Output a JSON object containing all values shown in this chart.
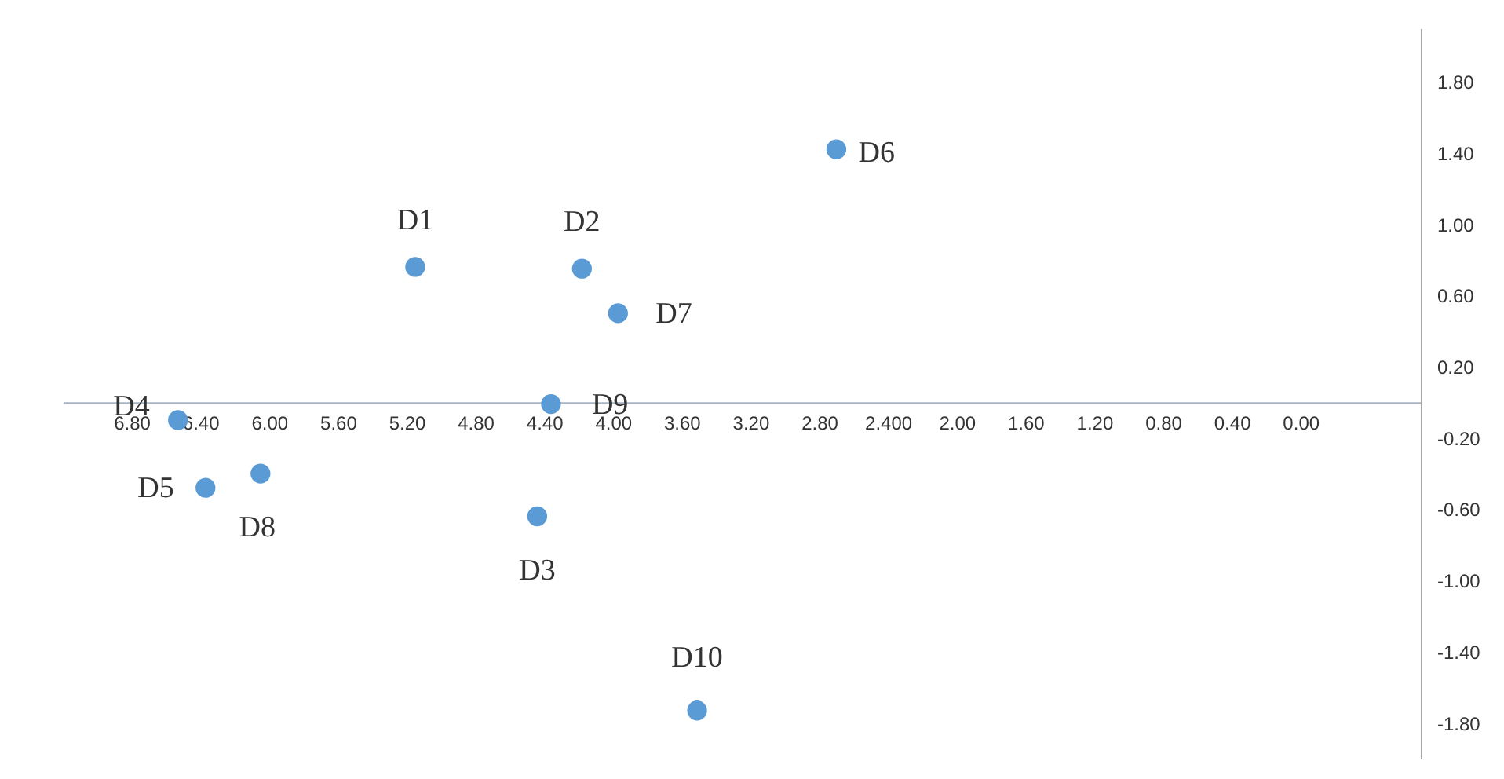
{
  "chart_data": {
    "type": "scatter",
    "x": [
      5.15,
      4.18,
      4.44,
      6.53,
      6.37,
      2.7,
      3.97,
      6.05,
      4.36,
      3.51
    ],
    "values": [
      0.76,
      0.75,
      -0.64,
      -0.1,
      -0.48,
      1.42,
      0.5,
      -0.4,
      -0.01,
      -1.73
    ],
    "value_labels": [
      "D1",
      "D2",
      "D3",
      "D4",
      "D5",
      "D6",
      "D7",
      "D8",
      "D9",
      "D10"
    ],
    "color": "#5b9bd5",
    "marker": "circle",
    "grid": false,
    "xlim": [
      7.2,
      -0.7
    ],
    "ylim": [
      -2.0,
      2.1
    ],
    "xticks": [
      {
        "value": 6.8,
        "label": "6.80"
      },
      {
        "value": 6.4,
        "label": "6.40"
      },
      {
        "value": 6.0,
        "label": "6.00"
      },
      {
        "value": 5.6,
        "label": "5.60"
      },
      {
        "value": 5.2,
        "label": "5.20"
      },
      {
        "value": 4.8,
        "label": "4.80"
      },
      {
        "value": 4.4,
        "label": "4.40"
      },
      {
        "value": 4.0,
        "label": "4.00"
      },
      {
        "value": 3.6,
        "label": "3.60"
      },
      {
        "value": 3.2,
        "label": "3.20"
      },
      {
        "value": 2.8,
        "label": "2.80"
      },
      {
        "value": 2.4,
        "label": "2.400"
      },
      {
        "value": 2.0,
        "label": "2.00"
      },
      {
        "value": 1.6,
        "label": "1.60"
      },
      {
        "value": 1.2,
        "label": "1.20"
      },
      {
        "value": 0.8,
        "label": "0.80"
      },
      {
        "value": 0.4,
        "label": "0.40"
      },
      {
        "value": 0.0,
        "label": "0.00"
      }
    ],
    "yticks": [
      {
        "value": 1.8,
        "label": "1.80"
      },
      {
        "value": 1.4,
        "label": "1.40"
      },
      {
        "value": 1.0,
        "label": "1.00"
      },
      {
        "value": 0.6,
        "label": "0.60"
      },
      {
        "value": 0.2,
        "label": "0.20"
      },
      {
        "value": -0.2,
        "label": "-0.20"
      },
      {
        "value": -0.6,
        "label": "-0.60"
      },
      {
        "value": -1.0,
        "label": "-1.00"
      },
      {
        "value": -1.4,
        "label": "-1.40"
      },
      {
        "value": -1.8,
        "label": "-1.80"
      }
    ]
  }
}
